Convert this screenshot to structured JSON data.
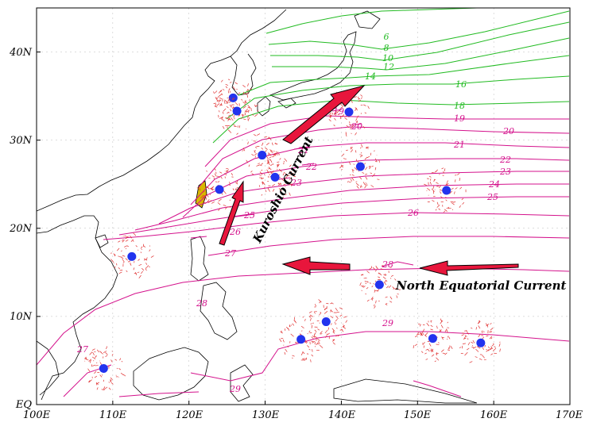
{
  "map": {
    "x_ticks": [
      "100E",
      "110E",
      "120E",
      "130E",
      "140E",
      "150E",
      "160E",
      "170E"
    ],
    "y_ticks": [
      "EQ",
      "10N",
      "20N",
      "30N",
      "40N"
    ],
    "colors": {
      "isotherm_green": "#22bb22",
      "isotherm_magenta": "#d4128c",
      "arrow_fill": "#e8163c",
      "arrow_outline": "#000000",
      "eddy_red": "#e03030",
      "eddy_center": "#2233ee",
      "coastline": "#000000",
      "grid": "#bbbbbb"
    },
    "currents": {
      "kuroshio_label": "Kuroshio Current",
      "nec_label": "North Equatorial Current"
    },
    "isotherm_labels_green": [
      "6",
      "8",
      "10",
      "12",
      "14",
      "16",
      "18"
    ],
    "isotherm_labels_magenta": [
      "19",
      "20",
      "21",
      "22",
      "23",
      "24",
      "25",
      "26",
      "27",
      "28",
      "29"
    ],
    "chart_data": {
      "type": "map",
      "xlim": [
        100,
        170
      ],
      "ylim": [
        0,
        45
      ],
      "isotherms": [
        {
          "value": 6,
          "color": "green"
        },
        {
          "value": 8,
          "color": "green"
        },
        {
          "value": 10,
          "color": "green"
        },
        {
          "value": 12,
          "color": "green"
        },
        {
          "value": 14,
          "color": "green"
        },
        {
          "value": 16,
          "color": "green"
        },
        {
          "value": 18,
          "color": "green"
        },
        {
          "value": 19,
          "color": "magenta"
        },
        {
          "value": 20,
          "color": "magenta"
        },
        {
          "value": 21,
          "color": "magenta"
        },
        {
          "value": 22,
          "color": "magenta"
        },
        {
          "value": 23,
          "color": "magenta"
        },
        {
          "value": 24,
          "color": "magenta"
        },
        {
          "value": 25,
          "color": "magenta"
        },
        {
          "value": 26,
          "color": "magenta"
        },
        {
          "value": 27,
          "color": "magenta"
        },
        {
          "value": 28,
          "color": "magenta"
        },
        {
          "value": 29,
          "color": "magenta"
        }
      ],
      "eddy_centers": [
        {
          "lon": 125.8,
          "lat": 34.8
        },
        {
          "lon": 126.3,
          "lat": 33.3
        },
        {
          "lon": 141.0,
          "lat": 33.2
        },
        {
          "lon": 129.6,
          "lat": 28.3
        },
        {
          "lon": 131.3,
          "lat": 25.8
        },
        {
          "lon": 142.5,
          "lat": 27.0
        },
        {
          "lon": 124.0,
          "lat": 24.4
        },
        {
          "lon": 153.8,
          "lat": 24.3
        },
        {
          "lon": 112.5,
          "lat": 16.8
        },
        {
          "lon": 145.0,
          "lat": 13.6
        },
        {
          "lon": 138.0,
          "lat": 9.4
        },
        {
          "lon": 134.7,
          "lat": 7.4
        },
        {
          "lon": 152.0,
          "lat": 7.5
        },
        {
          "lon": 158.3,
          "lat": 7.0
        },
        {
          "lon": 108.8,
          "lat": 4.1
        }
      ]
    }
  }
}
